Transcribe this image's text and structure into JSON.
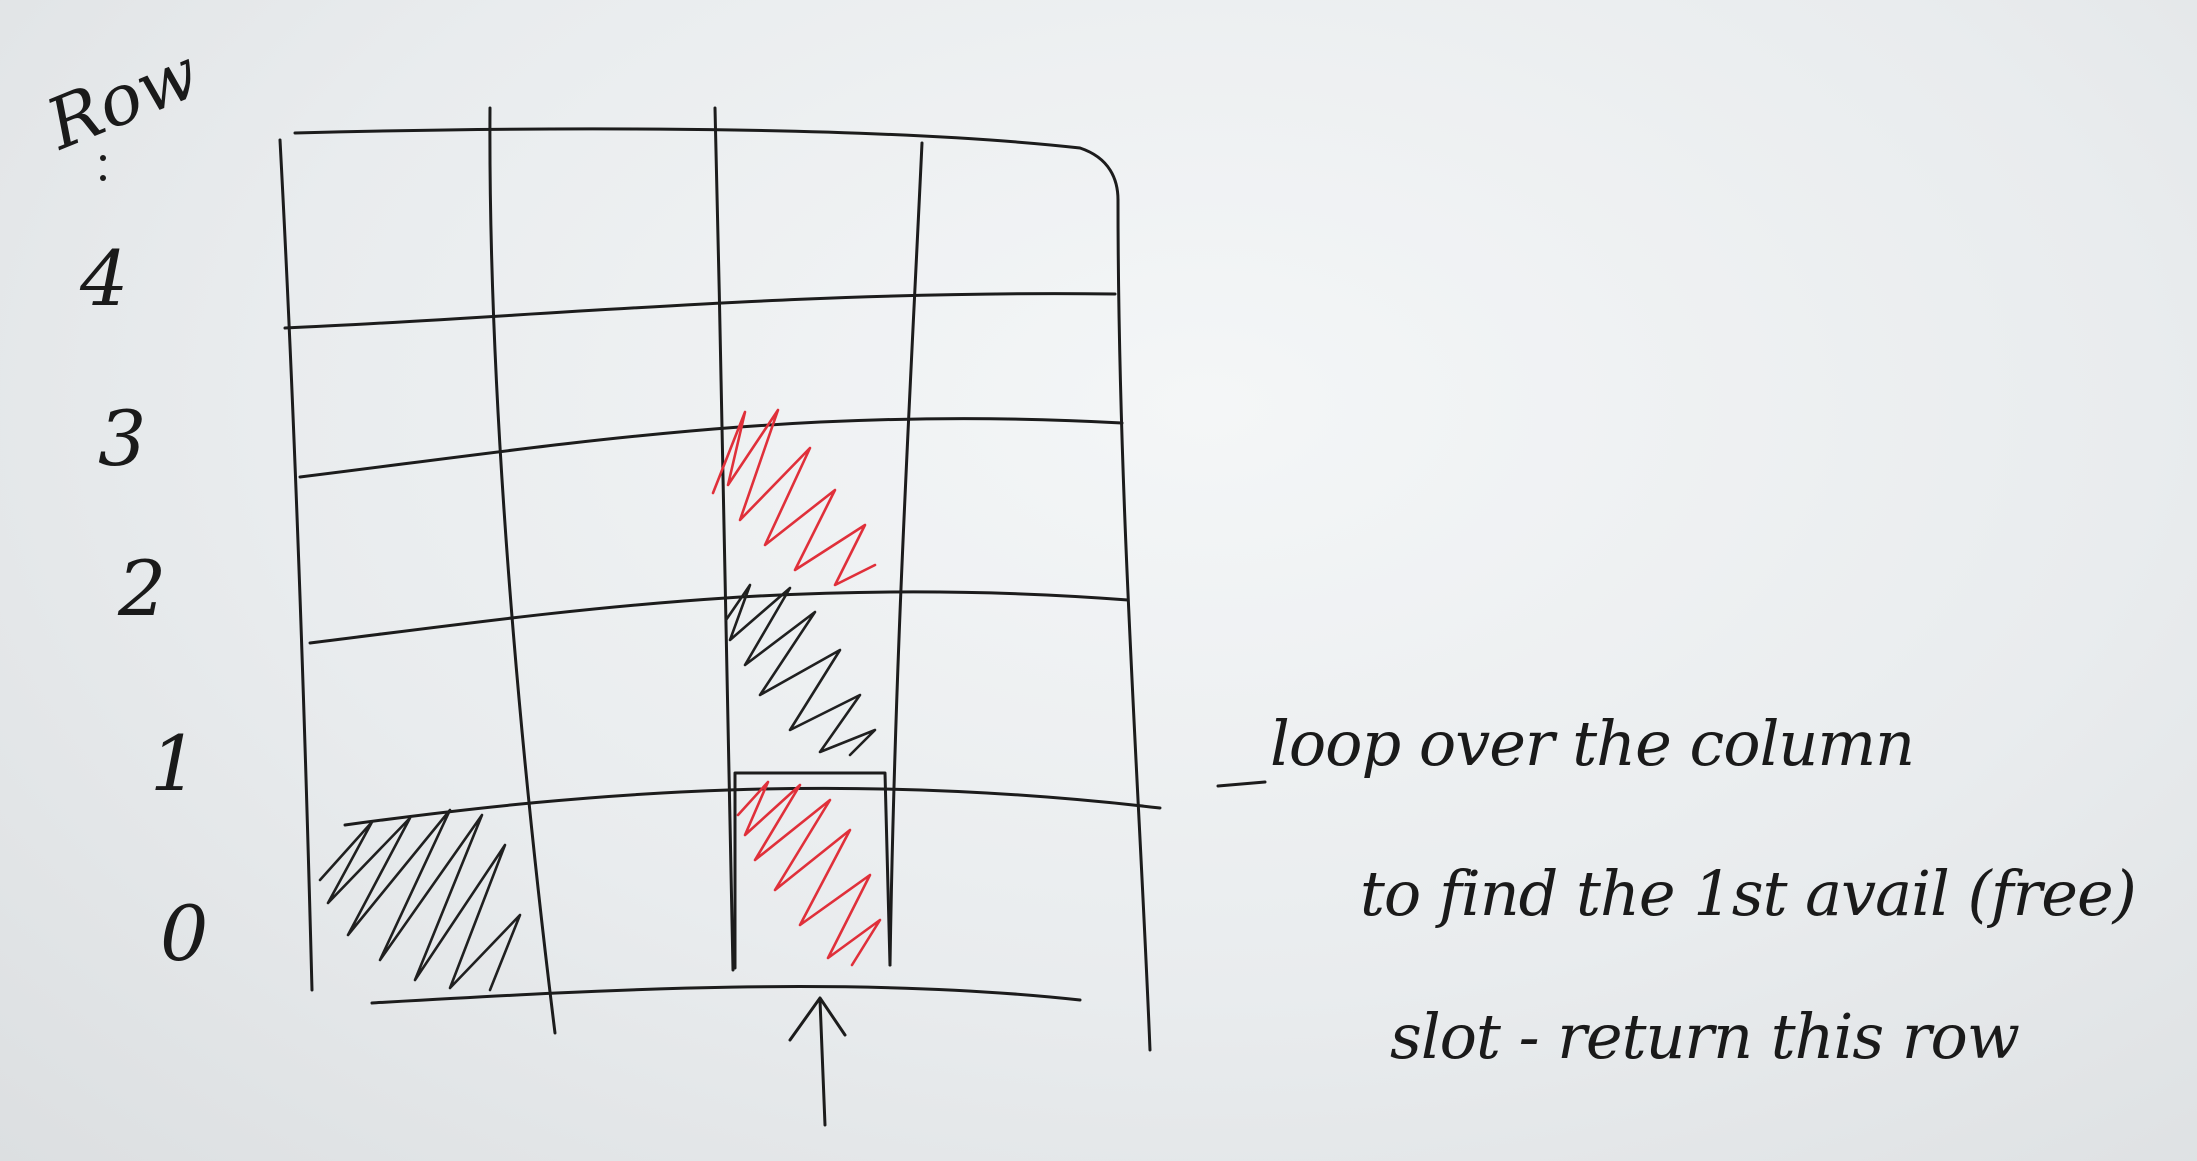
{
  "diagram": {
    "axis_title": "Row",
    "row_labels": [
      "4",
      "3",
      "2",
      "1",
      "0"
    ],
    "grid": {
      "rows": 5,
      "columns": 4
    },
    "filled_cells": [
      {
        "row": 0,
        "column": 0,
        "color": "black"
      },
      {
        "row": 0,
        "column": 2,
        "color": "red"
      },
      {
        "row": 1,
        "column": 2,
        "color": "black"
      },
      {
        "row": 2,
        "column": 2,
        "color": "red"
      }
    ],
    "highlighted_cell": {
      "row": 0,
      "column": 2
    },
    "arrow_column": 2,
    "note_lines": [
      "loop over the column",
      "to find the 1st avail (free)",
      "slot - return this row"
    ],
    "colors": {
      "ink": "#1c1c1c",
      "red_marker": "#e0303a",
      "board": "#e9ecee"
    }
  }
}
